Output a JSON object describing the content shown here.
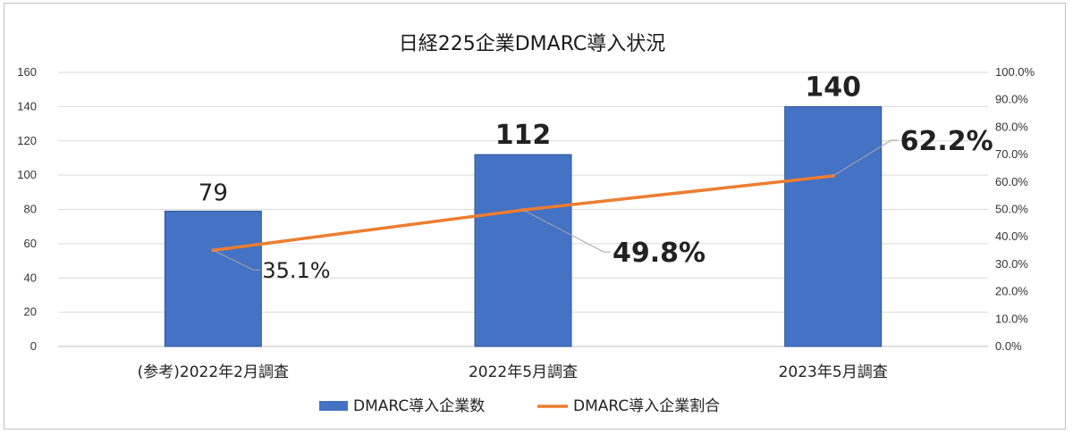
{
  "chart_data": {
    "type": "bar",
    "title": "日経225企業DMARC導入状況",
    "categories": [
      "(参考)2022年2月調査",
      "2022年5月調査",
      "2023年5月調査"
    ],
    "series": [
      {
        "name": "DMARC導入企業数",
        "type": "bar",
        "axis": "left",
        "values": [
          79,
          112,
          140
        ],
        "data_labels": [
          "79",
          "112",
          "140"
        ],
        "color": "#4472C4"
      },
      {
        "name": "DMARC導入企業割合",
        "type": "line",
        "axis": "right",
        "values": [
          35.1,
          49.8,
          62.2
        ],
        "data_labels": [
          "35.1%",
          "49.8%",
          "62.2%"
        ],
        "color": "#ED7D31"
      }
    ],
    "y_left": {
      "ylim": [
        0,
        160
      ],
      "ticks": [
        0,
        20,
        40,
        60,
        80,
        100,
        120,
        140,
        160
      ],
      "tick_labels": [
        "0",
        "20",
        "40",
        "60",
        "80",
        "100",
        "120",
        "140",
        "160"
      ]
    },
    "y_right": {
      "ylim": [
        0,
        100
      ],
      "ticks": [
        0,
        10,
        20,
        30,
        40,
        50,
        60,
        70,
        80,
        90,
        100
      ],
      "tick_labels": [
        "0.0%",
        "10.0%",
        "20.0%",
        "30.0%",
        "40.0%",
        "50.0%",
        "60.0%",
        "70.0%",
        "80.0%",
        "90.0%",
        "100.0%"
      ]
    },
    "grid": true,
    "legend_position": "bottom"
  }
}
